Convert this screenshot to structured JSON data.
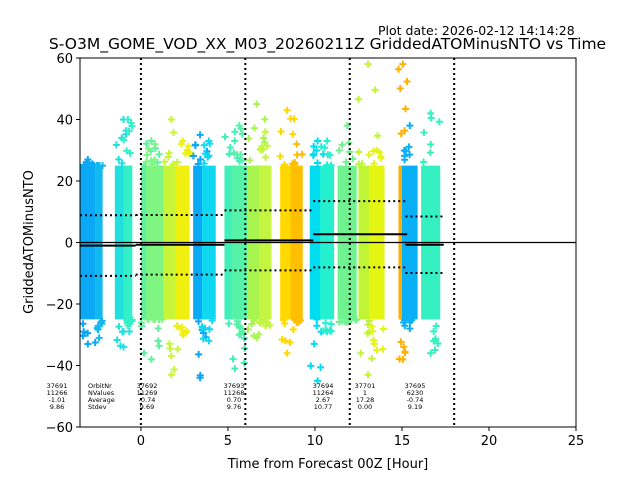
{
  "chart_data": {
    "type": "scatter",
    "plot_date": "Plot date: 2026-02-12 14:14:28",
    "title": "S-O3M_GOME_VOD_XX_M03_20260211Z GriddedATOMinusNTO vs Time",
    "xlabel": "Time from Forecast 00Z [Hour]",
    "ylabel": "GriddedATOMinusNTO",
    "xlim": [
      -3.5,
      25
    ],
    "ylim": [
      -60,
      60
    ],
    "xticks": [
      0,
      5,
      10,
      15,
      20,
      25
    ],
    "yticks": [
      -60,
      -40,
      -20,
      0,
      20,
      40,
      60
    ],
    "forecast_boundaries": [
      0,
      6,
      12,
      18
    ],
    "zero_line": 0,
    "stats_labels": [
      "OrbitNr",
      "NValues",
      "Average",
      "Stdev"
    ],
    "orbits": [
      {
        "orbit": "37691",
        "nvalues": "11266",
        "average": "-1.01",
        "stdev": "9.86",
        "x_start": -3.5,
        "x_end": -0.3
      },
      {
        "orbit": "37692",
        "nvalues": "11269",
        "average": "-0.74",
        "stdev": "9.69",
        "x_start": -0.3,
        "x_end": 4.8
      },
      {
        "orbit": "37693",
        "nvalues": "11268",
        "average": "0.70",
        "stdev": "9.76",
        "x_start": 4.8,
        "x_end": 9.9
      },
      {
        "orbit": "37694",
        "nvalues": "11264",
        "average": "2.67",
        "stdev": "10.77",
        "x_start": 9.9,
        "x_end": 15.3
      },
      {
        "orbit": "37701",
        "nvalues": "1",
        "average": "17.28",
        "stdev": "0.00",
        "x_start": 13.3,
        "x_end": 13.3
      },
      {
        "orbit": "37695",
        "nvalues": "6230",
        "average": "-0.74",
        "stdev": "9.19",
        "x_start": 15.2,
        "x_end": 17.4
      }
    ],
    "scatter_bands": [
      {
        "x_start": -3.5,
        "x_end": -2.6,
        "color": "#0aa8f5",
        "ymin": -33,
        "ymax": 27
      },
      {
        "x_start": -2.6,
        "x_end": -2.2,
        "color": "#12b8f0",
        "ymin": -31,
        "ymax": 25
      },
      {
        "x_start": -1.5,
        "x_end": -0.5,
        "color": "#22e0e0",
        "ymin": -34,
        "ymax": 40
      },
      {
        "x_start": -1.0,
        "x_end": -0.5,
        "color": "#33f0c8",
        "ymin": -27,
        "ymax": 40
      },
      {
        "x_start": 0.0,
        "x_end": 1.2,
        "color": "#60f0a0",
        "ymin": -38,
        "ymax": 33
      },
      {
        "x_start": 0.3,
        "x_end": 1.3,
        "color": "#7ff582",
        "ymin": -25,
        "ymax": 32
      },
      {
        "x_start": 1.3,
        "x_end": 2.2,
        "color": "#c8f53a",
        "ymin": -43,
        "ymax": 40
      },
      {
        "x_start": 2.0,
        "x_end": 2.8,
        "color": "#f0f010",
        "ymin": -30,
        "ymax": 33
      },
      {
        "x_start": 3.0,
        "x_end": 3.8,
        "color": "#0aa8f5",
        "ymin": -44,
        "ymax": 35
      },
      {
        "x_start": 3.5,
        "x_end": 4.3,
        "color": "#10d8f0",
        "ymin": -32,
        "ymax": 33
      },
      {
        "x_start": 4.8,
        "x_end": 6.0,
        "color": "#40f0b8",
        "ymin": -41,
        "ymax": 36
      },
      {
        "x_start": 5.2,
        "x_end": 6.1,
        "color": "#55f2a8",
        "ymin": -30,
        "ymax": 38
      },
      {
        "x_start": 6.1,
        "x_end": 7.2,
        "color": "#a8f550",
        "ymin": -31,
        "ymax": 45
      },
      {
        "x_start": 6.8,
        "x_end": 7.5,
        "color": "#c4f540",
        "ymin": -27,
        "ymax": 36
      },
      {
        "x_start": 8.0,
        "x_end": 8.8,
        "color": "#ffd800",
        "ymin": -36,
        "ymax": 43
      },
      {
        "x_start": 8.6,
        "x_end": 9.3,
        "color": "#ffbe00",
        "ymin": -26,
        "ymax": 32
      },
      {
        "x_start": 9.7,
        "x_end": 10.6,
        "color": "#00ddf0",
        "ymin": -45,
        "ymax": 33
      },
      {
        "x_start": 10.3,
        "x_end": 11.1,
        "color": "#25f0d0",
        "ymin": -29,
        "ymax": 33
      },
      {
        "x_start": 11.3,
        "x_end": 12.4,
        "color": "#70f290",
        "ymin": -26,
        "ymax": 38
      },
      {
        "x_start": 12.5,
        "x_end": 13.6,
        "color": "#c0f535",
        "ymin": -43,
        "ymax": 58
      },
      {
        "x_start": 13.1,
        "x_end": 14.0,
        "color": "#e4f512",
        "ymin": -35,
        "ymax": 30
      },
      {
        "x_start": 14.8,
        "x_end": 15.3,
        "color": "#ffb000",
        "ymin": -38,
        "ymax": 58
      },
      {
        "x_start": 15.0,
        "x_end": 15.9,
        "color": "#0ab0f5",
        "ymin": -28,
        "ymax": 38
      },
      {
        "x_start": 16.1,
        "x_end": 17.2,
        "color": "#35f0c0",
        "ymin": -36,
        "ymax": 42
      }
    ]
  }
}
